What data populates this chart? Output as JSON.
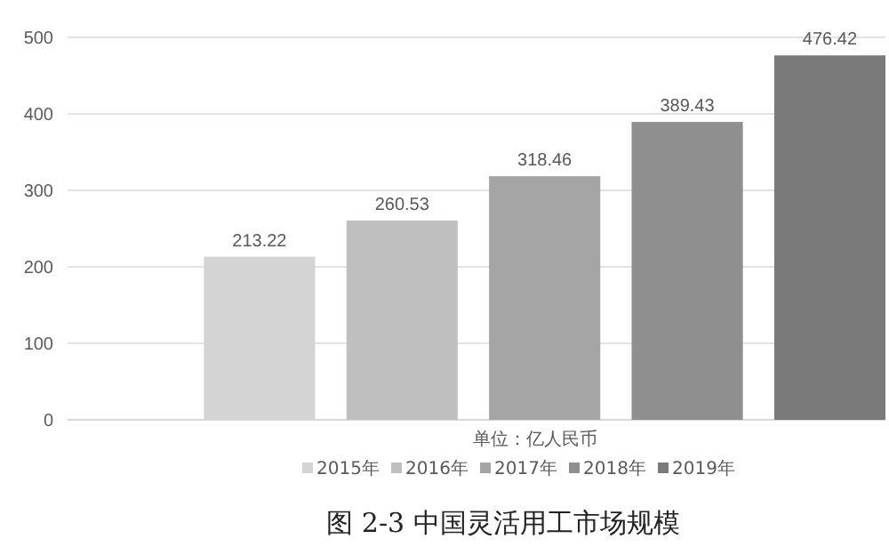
{
  "chart_data": {
    "type": "bar",
    "title": "图 2-3  中国灵活用工市场规模",
    "xlabel": "单位：亿人民币",
    "categories": [
      null
    ],
    "series": [
      {
        "name": "2015年",
        "color": "#d4d4d4",
        "values": [
          213.22
        ]
      },
      {
        "name": "2016年",
        "color": "#bfbfbf",
        "values": [
          260.53
        ]
      },
      {
        "name": "2017年",
        "color": "#a5a5a5",
        "values": [
          318.46
        ]
      },
      {
        "name": "2018年",
        "color": "#8f8f8f",
        "values": [
          389.43
        ]
      },
      {
        "name": "2019年",
        "color": "#7a7a7a",
        "values": [
          476.42
        ]
      }
    ],
    "ylim": [
      0,
      500
    ],
    "yticks": [
      0,
      100,
      200,
      300,
      400,
      500
    ],
    "grid": "y",
    "legend": "bottom",
    "data_labels": true
  }
}
